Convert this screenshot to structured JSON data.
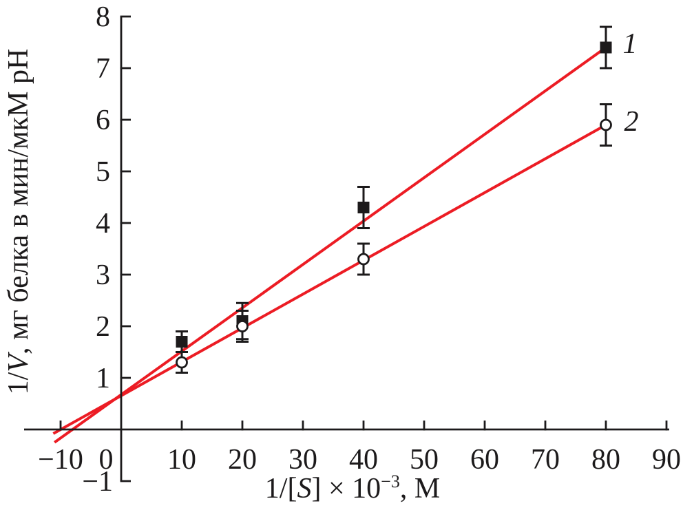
{
  "chart_data": {
    "type": "scatter",
    "title": "",
    "background": "#ffffff",
    "axis_color": "#1c1a1b",
    "fit_line_color": "#ec1c24",
    "x_axis": {
      "label_parts": [
        "1/[",
        "S",
        "] × 10",
        "−3",
        ", M"
      ],
      "ticks": [
        {
          "v": -10,
          "label": "−10"
        },
        {
          "v": 0,
          "label": "0"
        },
        {
          "v": 10,
          "label": "10"
        },
        {
          "v": 20,
          "label": "20"
        },
        {
          "v": 30,
          "label": "30"
        },
        {
          "v": 40,
          "label": "40"
        },
        {
          "v": 50,
          "label": "50"
        },
        {
          "v": 60,
          "label": "60"
        },
        {
          "v": 70,
          "label": "70"
        },
        {
          "v": 80,
          "label": "80"
        },
        {
          "v": 90,
          "label": "90"
        }
      ],
      "drawn_range": [
        -16,
        90.5
      ]
    },
    "y_axis": {
      "label_parts": [
        "1/",
        "V",
        ", мг белка в мин/мкМ pH"
      ],
      "ticks": [
        {
          "v": -1,
          "label": "−1"
        },
        {
          "v": 1,
          "label": "1"
        },
        {
          "v": 2,
          "label": "2"
        },
        {
          "v": 3,
          "label": "3"
        },
        {
          "v": 4,
          "label": "4"
        },
        {
          "v": 5,
          "label": "5"
        },
        {
          "v": 6,
          "label": "6"
        },
        {
          "v": 7,
          "label": "7"
        },
        {
          "v": 8,
          "label": "8"
        }
      ],
      "drawn_range": [
        -1,
        8
      ]
    },
    "series": [
      {
        "name": "1",
        "marker": "filled-square",
        "marker_color": "#1c1a1b",
        "points": [
          {
            "x": 10,
            "y": 1.7,
            "err": 0.2
          },
          {
            "x": 20,
            "y": 2.1,
            "err": 0.35
          },
          {
            "x": 40,
            "y": 4.3,
            "err": 0.4
          },
          {
            "x": 80,
            "y": 7.4,
            "err": 0.4
          }
        ],
        "fit_line": {
          "x1": -11.0,
          "y1": -0.25,
          "x2": 80,
          "y2": 7.4
        }
      },
      {
        "name": "2",
        "marker": "open-circle",
        "marker_color": "#1c1a1b",
        "points": [
          {
            "x": 10,
            "y": 1.3,
            "err": 0.2
          },
          {
            "x": 20,
            "y": 2.0,
            "err": 0.3
          },
          {
            "x": 40,
            "y": 3.3,
            "err": 0.3
          },
          {
            "x": 80,
            "y": 5.9,
            "err": 0.4
          }
        ],
        "fit_line": {
          "x1": -11.2,
          "y1": -0.08,
          "x2": 80,
          "y2": 5.9
        }
      }
    ]
  }
}
